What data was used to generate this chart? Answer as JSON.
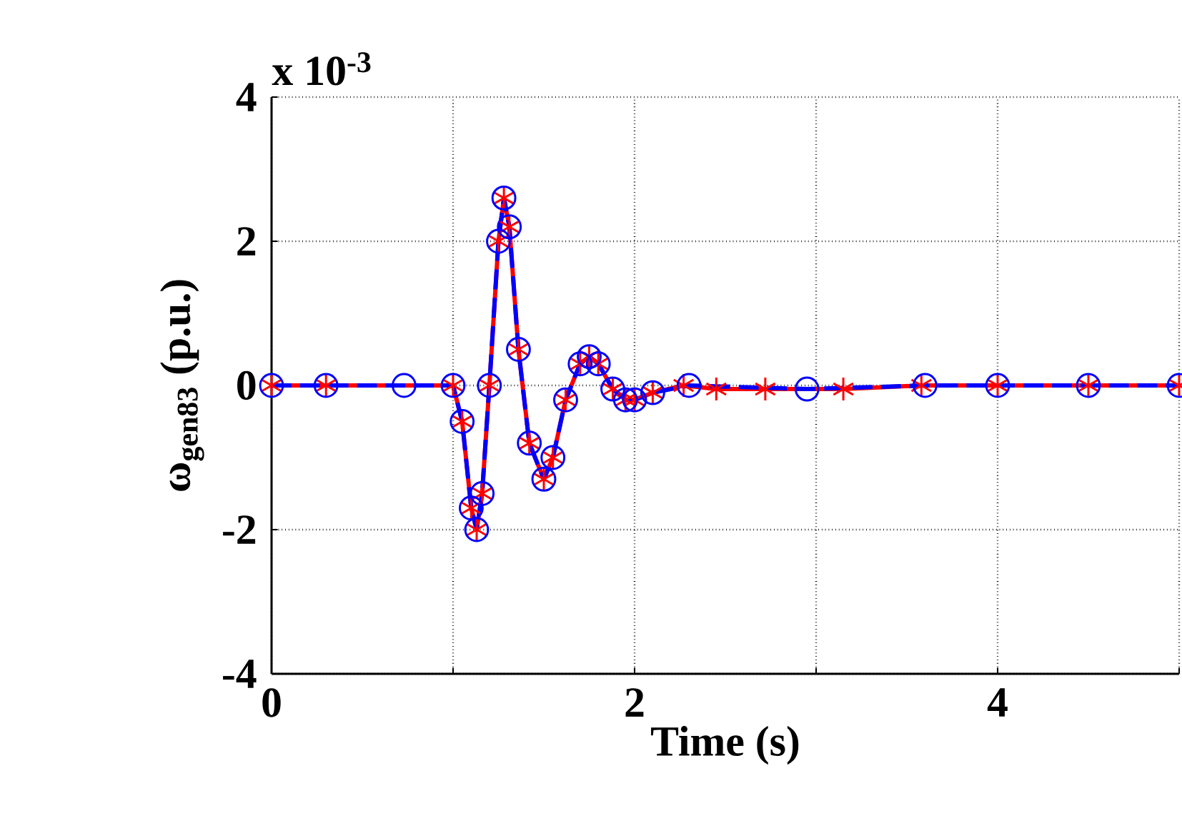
{
  "chart_data": {
    "type": "line",
    "xlabel": "Time (s)",
    "ylabel": "ω$_{gen83}$ (p.u.)",
    "annotations": [
      "x 10$^{-3}$"
    ],
    "xlim": [
      0,
      5
    ],
    "xticks": [
      0,
      {
        "value": 1,
        "label": null
      },
      2,
      {
        "value": 3,
        "label": null
      },
      4,
      {
        "value": 5,
        "label": null
      }
    ],
    "ylim": [
      -4,
      4
    ],
    "yticks": [
      -4,
      -2,
      0,
      2,
      4
    ],
    "grid": true,
    "series": [
      {
        "color": "#ff0000",
        "marker": "cross",
        "line_style": "solid",
        "x": [
          0,
          0.3,
          1.0,
          1.05,
          1.1,
          1.13,
          1.16,
          1.2,
          1.25,
          1.28,
          1.31,
          1.36,
          1.42,
          1.5,
          1.55,
          1.62,
          1.7,
          1.75,
          1.8,
          1.88,
          1.95,
          2.0,
          2.1,
          2.27,
          2.45,
          2.72,
          3.15,
          3.58,
          4.0,
          4.5,
          5.0
        ],
        "values": [
          0,
          0,
          0,
          -0.5,
          -1.7,
          -2.0,
          -1.5,
          0,
          2.0,
          2.6,
          2.2,
          0.5,
          -0.8,
          -1.3,
          -1.0,
          -0.2,
          0.3,
          0.4,
          0.3,
          -0.05,
          -0.2,
          -0.2,
          -0.1,
          0,
          -0.05,
          -0.05,
          -0.05,
          0,
          0,
          0,
          0
        ]
      },
      {
        "color": "#0000ff",
        "marker": "circle",
        "line_style": "dashed",
        "x": [
          0,
          0.3,
          0.73,
          1.0,
          1.05,
          1.1,
          1.13,
          1.16,
          1.2,
          1.25,
          1.28,
          1.31,
          1.36,
          1.42,
          1.5,
          1.55,
          1.62,
          1.7,
          1.75,
          1.8,
          1.88,
          1.95,
          2.0,
          2.1,
          2.3,
          2.95,
          3.6,
          4.0,
          4.5,
          5.0
        ],
        "values": [
          0,
          0,
          0,
          0,
          -0.5,
          -1.7,
          -2.0,
          -1.5,
          0,
          2.0,
          2.6,
          2.2,
          0.5,
          -0.8,
          -1.3,
          -1.0,
          -0.2,
          0.3,
          0.4,
          0.3,
          -0.05,
          -0.2,
          -0.2,
          -0.1,
          0,
          -0.05,
          0,
          0,
          0,
          0
        ]
      }
    ]
  }
}
